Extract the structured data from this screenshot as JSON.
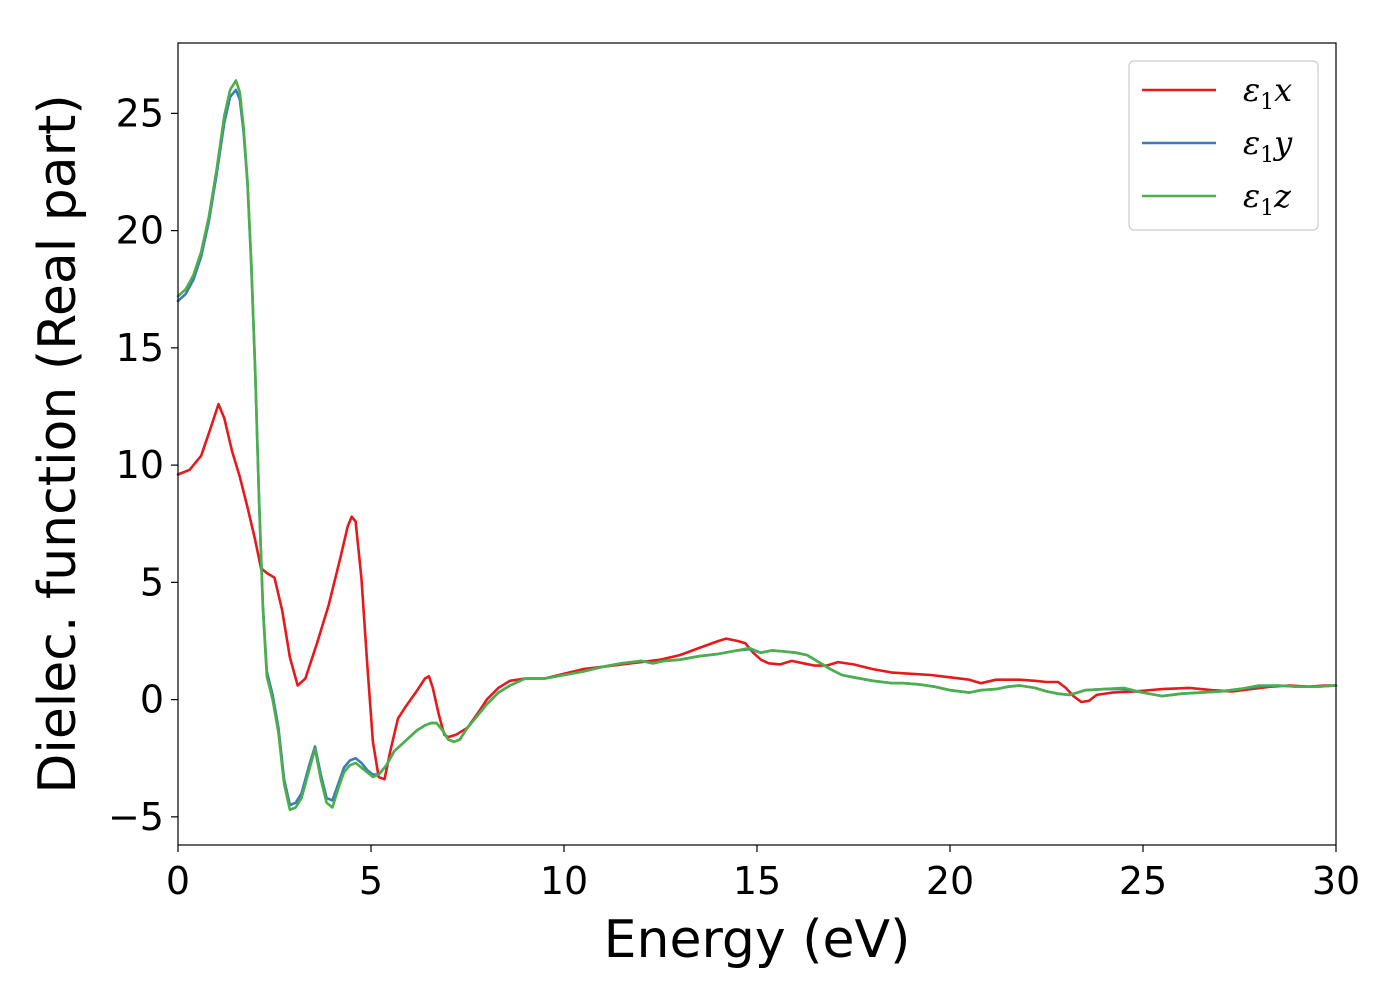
{
  "chart_data": {
    "type": "line",
    "xlabel": "Energy (eV)",
    "ylabel": "Dielec. function (Real part)",
    "xlim": [
      0,
      30
    ],
    "ylim": [
      -6.2,
      28
    ],
    "xticks": [
      0,
      5,
      10,
      15,
      20,
      25,
      30
    ],
    "yticks": [
      -5,
      0,
      5,
      10,
      15,
      20,
      25
    ],
    "xtick_labels": [
      "0",
      "5",
      "10",
      "15",
      "20",
      "25",
      "30"
    ],
    "ytick_labels": [
      "−5",
      "0",
      "5",
      "10",
      "15",
      "20",
      "25"
    ],
    "grid": false,
    "legend_position": "top-right",
    "series": [
      {
        "name": "ε₁x",
        "legend_main": "ε",
        "legend_sub": "1",
        "legend_suffix": "x",
        "color": "#e41a1c",
        "x": [
          0,
          0.3,
          0.6,
          0.85,
          1.05,
          1.2,
          1.4,
          1.6,
          1.8,
          2.0,
          2.15,
          2.3,
          2.5,
          2.7,
          2.9,
          3.1,
          3.3,
          3.6,
          3.9,
          4.2,
          4.4,
          4.5,
          4.6,
          4.75,
          4.9,
          5.05,
          5.2,
          5.35,
          5.5,
          5.7,
          5.9,
          6.2,
          6.4,
          6.5,
          6.6,
          6.75,
          6.9,
          7.0,
          7.2,
          7.5,
          7.8,
          8.0,
          8.3,
          8.6,
          9.0,
          9.5,
          10.0,
          10.5,
          11.0,
          11.5,
          12.0,
          12.5,
          13.0,
          13.5,
          14.0,
          14.2,
          14.5,
          14.7,
          14.9,
          15.1,
          15.3,
          15.6,
          15.9,
          16.2,
          16.5,
          16.8,
          17.1,
          17.5,
          18.0,
          18.5,
          19.0,
          19.5,
          20.0,
          20.5,
          20.8,
          21.2,
          21.5,
          21.8,
          22.2,
          22.5,
          22.8,
          23.0,
          23.2,
          23.4,
          23.6,
          23.8,
          24.2,
          24.8,
          25.5,
          26.2,
          26.8,
          27.3,
          27.8,
          28.3,
          28.8,
          29.3,
          29.7,
          30.0
        ],
        "y": [
          9.6,
          9.8,
          10.4,
          11.6,
          12.6,
          12.0,
          10.6,
          9.5,
          8.2,
          6.8,
          5.6,
          5.4,
          5.2,
          3.8,
          1.8,
          0.6,
          0.9,
          2.4,
          4.0,
          6.0,
          7.4,
          7.8,
          7.6,
          5.2,
          1.6,
          -1.8,
          -3.3,
          -3.4,
          -2.2,
          -0.8,
          -0.3,
          0.4,
          0.9,
          1.0,
          0.5,
          -0.6,
          -1.5,
          -1.6,
          -1.5,
          -1.2,
          -0.5,
          0.0,
          0.5,
          0.8,
          0.9,
          0.9,
          1.1,
          1.3,
          1.4,
          1.5,
          1.6,
          1.7,
          1.9,
          2.2,
          2.5,
          2.6,
          2.5,
          2.4,
          2.0,
          1.7,
          1.55,
          1.5,
          1.65,
          1.55,
          1.45,
          1.45,
          1.6,
          1.5,
          1.3,
          1.15,
          1.1,
          1.05,
          0.95,
          0.85,
          0.7,
          0.85,
          0.85,
          0.85,
          0.8,
          0.75,
          0.75,
          0.5,
          0.15,
          -0.1,
          -0.05,
          0.2,
          0.3,
          0.35,
          0.45,
          0.5,
          0.4,
          0.35,
          0.45,
          0.55,
          0.6,
          0.55,
          0.6,
          0.6
        ]
      },
      {
        "name": "ε₁y",
        "legend_main": "ε",
        "legend_sub": "1",
        "legend_suffix": "y",
        "color": "#377eb8",
        "x": [
          0,
          0.2,
          0.4,
          0.6,
          0.8,
          1.0,
          1.2,
          1.35,
          1.5,
          1.6,
          1.7,
          1.8,
          1.9,
          2.0,
          2.1,
          2.2,
          2.3,
          2.45,
          2.6,
          2.75,
          2.9,
          3.05,
          3.2,
          3.4,
          3.55,
          3.7,
          3.85,
          4.0,
          4.15,
          4.3,
          4.45,
          4.6,
          4.75,
          4.9,
          5.05,
          5.2,
          5.4,
          5.6,
          5.8,
          6.0,
          6.2,
          6.4,
          6.55,
          6.7,
          6.85,
          7.0,
          7.15,
          7.3,
          7.5,
          7.8,
          8.0,
          8.3,
          8.6,
          9.0,
          9.5,
          10.0,
          10.5,
          11.0,
          11.5,
          12.0,
          12.3,
          12.6,
          13.0,
          13.5,
          14.0,
          14.5,
          14.8,
          15.1,
          15.4,
          15.7,
          16.0,
          16.3,
          16.6,
          16.9,
          17.2,
          17.5,
          18.0,
          18.5,
          18.8,
          19.2,
          19.6,
          20.0,
          20.5,
          20.8,
          21.2,
          21.5,
          21.8,
          22.2,
          22.5,
          22.8,
          23.1,
          23.5,
          24.0,
          24.5,
          25.0,
          25.5,
          26.0,
          26.5,
          27.0,
          27.5,
          28.0,
          28.5,
          29.0,
          29.5,
          30.0
        ],
        "y": [
          17.0,
          17.3,
          17.9,
          18.9,
          20.4,
          22.4,
          24.6,
          25.7,
          26.0,
          25.6,
          24.2,
          22.0,
          18.5,
          14.0,
          8.5,
          4.0,
          1.2,
          0.2,
          -1.2,
          -3.4,
          -4.5,
          -4.4,
          -4.0,
          -2.8,
          -2.0,
          -3.2,
          -4.2,
          -4.3,
          -3.6,
          -2.9,
          -2.6,
          -2.5,
          -2.7,
          -3.0,
          -3.2,
          -3.2,
          -2.8,
          -2.2,
          -1.9,
          -1.6,
          -1.3,
          -1.1,
          -1.0,
          -1.0,
          -1.3,
          -1.7,
          -1.8,
          -1.7,
          -1.2,
          -0.6,
          -0.2,
          0.3,
          0.6,
          0.9,
          0.9,
          1.05,
          1.2,
          1.4,
          1.55,
          1.65,
          1.55,
          1.65,
          1.7,
          1.85,
          1.95,
          2.1,
          2.15,
          2.0,
          2.1,
          2.05,
          2.0,
          1.9,
          1.6,
          1.3,
          1.05,
          0.95,
          0.8,
          0.7,
          0.7,
          0.65,
          0.55,
          0.4,
          0.3,
          0.4,
          0.45,
          0.55,
          0.6,
          0.5,
          0.35,
          0.25,
          0.2,
          0.4,
          0.45,
          0.45,
          0.3,
          0.15,
          0.25,
          0.3,
          0.35,
          0.45,
          0.55,
          0.6,
          0.55,
          0.55,
          0.6
        ]
      },
      {
        "name": "ε₁z",
        "legend_main": "ε",
        "legend_sub": "1",
        "legend_suffix": "z",
        "color": "#4daf4a",
        "x": [
          0,
          0.2,
          0.4,
          0.6,
          0.8,
          1.0,
          1.2,
          1.35,
          1.5,
          1.6,
          1.7,
          1.8,
          1.9,
          2.0,
          2.1,
          2.2,
          2.3,
          2.45,
          2.6,
          2.75,
          2.9,
          3.05,
          3.2,
          3.4,
          3.55,
          3.7,
          3.85,
          4.0,
          4.15,
          4.3,
          4.45,
          4.6,
          4.75,
          4.9,
          5.05,
          5.2,
          5.4,
          5.6,
          5.8,
          6.0,
          6.2,
          6.4,
          6.55,
          6.7,
          6.85,
          7.0,
          7.15,
          7.3,
          7.5,
          7.8,
          8.0,
          8.3,
          8.6,
          9.0,
          9.5,
          10.0,
          10.5,
          11.0,
          11.5,
          12.0,
          12.3,
          12.6,
          13.0,
          13.5,
          14.0,
          14.5,
          14.8,
          15.1,
          15.4,
          15.7,
          16.0,
          16.3,
          16.6,
          16.9,
          17.2,
          17.5,
          18.0,
          18.5,
          18.8,
          19.2,
          19.6,
          20.0,
          20.5,
          20.8,
          21.2,
          21.5,
          21.8,
          22.2,
          22.5,
          22.8,
          23.1,
          23.5,
          24.0,
          24.5,
          25.0,
          25.5,
          26.0,
          26.5,
          27.0,
          27.5,
          28.0,
          28.5,
          29.0,
          29.5,
          30.0
        ],
        "y": [
          17.2,
          17.5,
          18.1,
          19.1,
          20.6,
          22.6,
          24.9,
          26.0,
          26.4,
          25.9,
          24.4,
          22.1,
          18.6,
          14.0,
          8.4,
          3.9,
          1.0,
          0.0,
          -1.4,
          -3.6,
          -4.7,
          -4.6,
          -4.2,
          -3.0,
          -2.1,
          -3.4,
          -4.4,
          -4.6,
          -3.8,
          -3.1,
          -2.8,
          -2.7,
          -2.9,
          -3.1,
          -3.3,
          -3.2,
          -2.8,
          -2.2,
          -1.9,
          -1.6,
          -1.3,
          -1.1,
          -1.0,
          -1.0,
          -1.3,
          -1.7,
          -1.8,
          -1.7,
          -1.2,
          -0.6,
          -0.2,
          0.3,
          0.6,
          0.9,
          0.9,
          1.05,
          1.2,
          1.4,
          1.55,
          1.65,
          1.55,
          1.65,
          1.7,
          1.85,
          1.95,
          2.1,
          2.2,
          2.0,
          2.1,
          2.05,
          2.0,
          1.9,
          1.6,
          1.3,
          1.05,
          0.95,
          0.8,
          0.7,
          0.7,
          0.65,
          0.55,
          0.4,
          0.3,
          0.4,
          0.45,
          0.55,
          0.6,
          0.5,
          0.35,
          0.25,
          0.2,
          0.4,
          0.45,
          0.5,
          0.3,
          0.15,
          0.25,
          0.3,
          0.35,
          0.45,
          0.6,
          0.6,
          0.55,
          0.55,
          0.6
        ]
      }
    ]
  }
}
